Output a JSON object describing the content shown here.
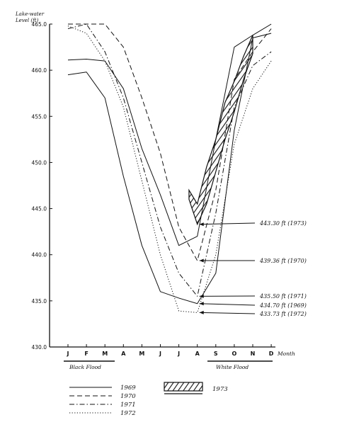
{
  "chart_data": {
    "type": "line",
    "ylabel": "Lake-water Level (ft)",
    "xlabel": "Month",
    "categories": [
      "J",
      "F",
      "M",
      "A",
      "M",
      "J",
      "J",
      "A",
      "S",
      "O",
      "N",
      "D"
    ],
    "yticks": [
      "465.0",
      "460.0",
      "455.0",
      "450.0",
      "445.0",
      "440.0",
      "435.0",
      "430.0"
    ],
    "ylim": [
      430,
      465
    ],
    "series": [
      {
        "name": "1969",
        "style": "solid",
        "x": [
          0,
          1,
          2,
          3,
          4,
          5,
          6,
          7,
          8,
          9,
          10,
          11
        ],
        "values": [
          459.5,
          459.8,
          457.0,
          448.5,
          441.0,
          436.0,
          435.3,
          434.7,
          438.0,
          453.5,
          463.5,
          464.0
        ]
      },
      {
        "name": "1969 (upper)",
        "style": "solid",
        "x": [
          0,
          1,
          2,
          3,
          4,
          5,
          6,
          7,
          8,
          9,
          10,
          11
        ],
        "values": [
          461.1,
          461.2,
          461.0,
          458.0,
          451.5,
          446.5,
          441.0,
          442.0,
          452.5,
          462.5,
          463.8,
          465.0
        ]
      },
      {
        "name": "1970",
        "style": "dashed",
        "x": [
          0,
          1,
          2,
          3,
          4,
          5,
          6,
          7,
          8,
          9,
          10,
          11
        ],
        "values": [
          465.0,
          465.0,
          465.0,
          462.5,
          457.0,
          451.0,
          443.0,
          439.36,
          447.0,
          459.0,
          462.0,
          464.5
        ]
      },
      {
        "name": "1971",
        "style": "dashdot",
        "x": [
          0,
          1,
          2,
          3,
          4,
          5,
          6,
          7,
          8,
          9,
          10,
          11
        ],
        "values": [
          464.5,
          465.0,
          462.0,
          457.0,
          450.0,
          443.0,
          438.0,
          435.5,
          444.5,
          456.0,
          460.5,
          462.0
        ]
      },
      {
        "name": "1972",
        "style": "dotted",
        "x": [
          0,
          1,
          2,
          3,
          4,
          5,
          6,
          7,
          8,
          9,
          10,
          11
        ],
        "values": [
          464.8,
          464.0,
          461.0,
          456.0,
          448.0,
          440.0,
          433.9,
          433.73,
          440.0,
          452.0,
          458.0,
          461.0
        ]
      },
      {
        "name": "1973",
        "style": "hatch",
        "x": [
          6.55,
          7.0,
          7.5,
          8.0,
          8.5,
          9.0,
          9.5,
          10.0
        ],
        "upper": [
          447.0,
          445.5,
          449.5,
          452.5,
          456.5,
          458.8,
          461.5,
          463.8
        ],
        "lower": [
          446.0,
          443.3,
          445.5,
          449.0,
          452.5,
          455.5,
          459.0,
          461.8
        ]
      }
    ],
    "annotations": [
      {
        "text": "443.30 ft (1973)",
        "value": 443.3
      },
      {
        "text": "439.36 ft (1970)",
        "value": 439.36
      },
      {
        "text": "435.50 ft (1971)",
        "value": 435.5
      },
      {
        "text": "434.70 ft (1969)",
        "value": 434.7
      },
      {
        "text": "433.73 ft (1972)",
        "value": 433.73
      }
    ],
    "flood_labels": [
      "Black Flood",
      "White Flood"
    ],
    "legend": [
      {
        "label": "1969",
        "style": "solid"
      },
      {
        "label": "1970",
        "style": "dashed"
      },
      {
        "label": "1971",
        "style": "dashdot"
      },
      {
        "label": "1972",
        "style": "dotted"
      },
      {
        "label": "1973",
        "style": "hatch"
      }
    ]
  }
}
